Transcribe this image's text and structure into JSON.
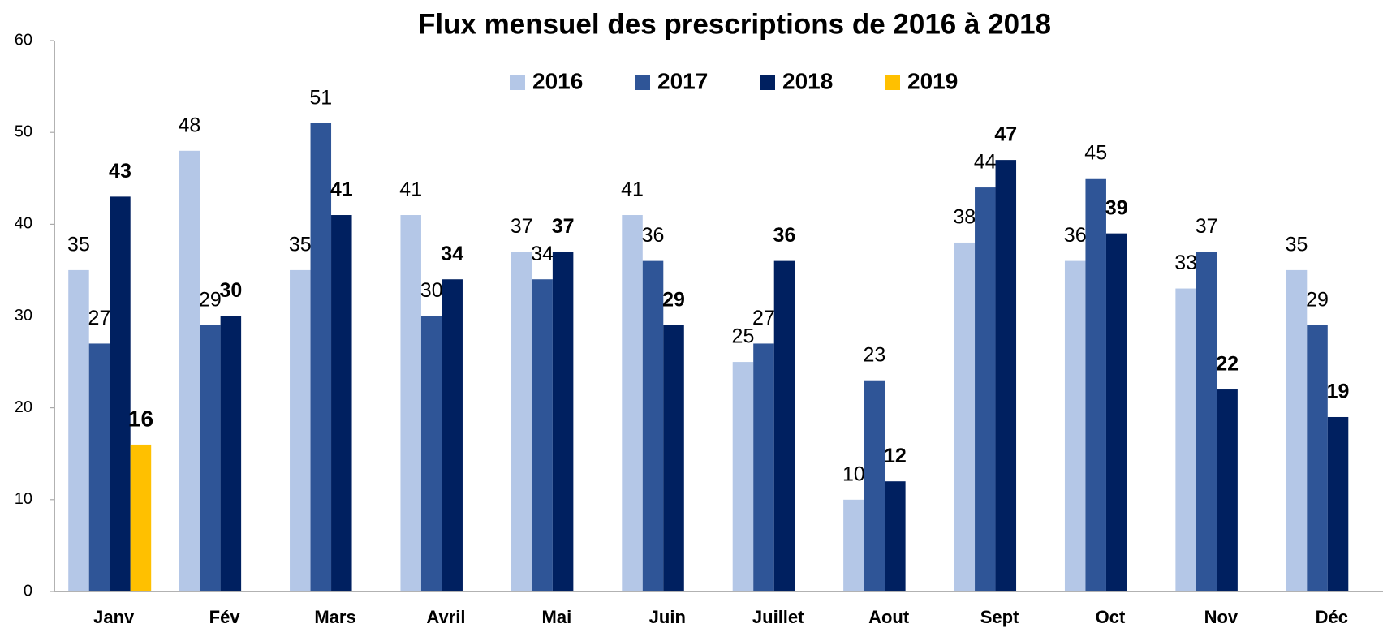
{
  "chart_data": {
    "type": "bar",
    "title": "Flux mensuel des prescriptions  de 2016 à 2018",
    "categories": [
      "Janv",
      "Fév",
      "Mars",
      "Avril",
      "Mai",
      "Juin",
      "Juillet",
      "Aout",
      "Sept",
      "Oct",
      "Nov",
      "Déc"
    ],
    "series": [
      {
        "name": "2016",
        "color": "#b4c7e7",
        "values": [
          35,
          48,
          35,
          41,
          37,
          41,
          25,
          10,
          38,
          36,
          33,
          35
        ]
      },
      {
        "name": "2017",
        "color": "#2f5597",
        "values": [
          27,
          29,
          51,
          30,
          34,
          36,
          27,
          23,
          44,
          45,
          37,
          29
        ]
      },
      {
        "name": "2018",
        "color": "#002060",
        "values": [
          43,
          30,
          41,
          34,
          37,
          29,
          36,
          12,
          47,
          39,
          22,
          19
        ]
      },
      {
        "name": "2019",
        "color": "#ffc000",
        "values": [
          16,
          null,
          null,
          null,
          null,
          null,
          null,
          null,
          null,
          null,
          null,
          null
        ]
      }
    ],
    "ylim": [
      0,
      60
    ],
    "yticks": [
      0,
      10,
      20,
      30,
      40,
      50,
      60
    ],
    "grid": false,
    "legend": "top"
  }
}
